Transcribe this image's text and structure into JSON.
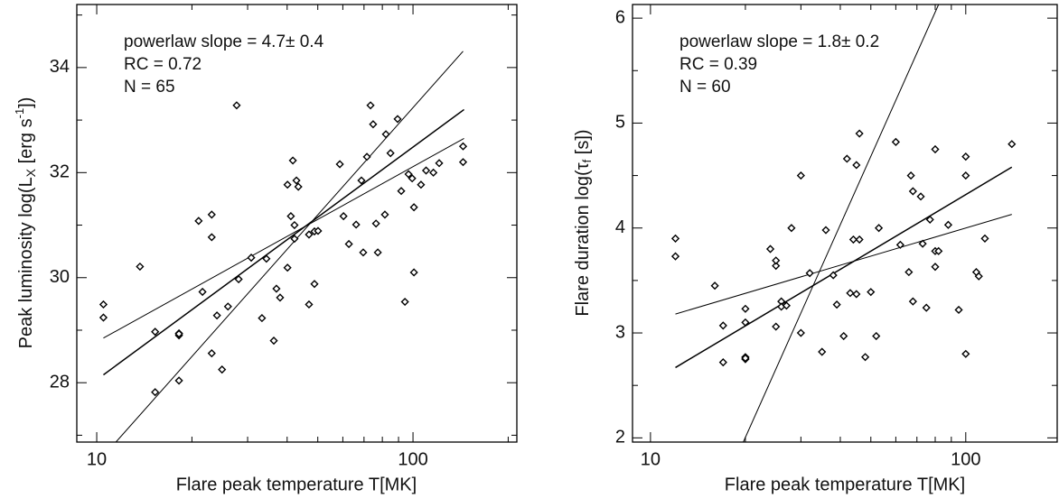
{
  "chart_data": [
    {
      "type": "scatter",
      "xlabel": "Flare peak temperature  T[MK]",
      "ylabel": [
        "Peak luminosity  log(L",
        "X",
        " [erg s",
        "-1",
        "])"
      ],
      "annotations": [
        "powerlaw slope =  4.7± 0.4",
        "RC = 0.72",
        "N = 65"
      ],
      "xlog": true,
      "xlim": [
        8.65,
        213
      ],
      "xticks": [
        10,
        100
      ],
      "xminorticks": [
        20,
        30,
        40,
        50,
        60,
        70,
        80,
        90,
        200
      ],
      "ylim": [
        26.87,
        35.2
      ],
      "yticks": [
        28,
        30,
        32,
        34
      ],
      "yminorticks": [
        27,
        29,
        31,
        33,
        35
      ],
      "color": "#000000",
      "x": [
        10.5,
        10.5,
        13.7,
        15.3,
        15.3,
        18.2,
        18.2,
        18.2,
        18.2,
        21.0,
        21.6,
        23.1,
        23.1,
        23.1,
        24.0,
        24.9,
        26.0,
        27.7,
        28.1,
        30.8,
        33.3,
        34.4,
        36.3,
        37.0,
        38.0,
        40.1,
        40.1,
        41.1,
        41.7,
        42.2,
        42.2,
        42.8,
        43.4,
        46.9,
        46.9,
        48.8,
        48.8,
        50.1,
        58.7,
        60.3,
        62.7,
        66.1,
        68.7,
        69.6,
        71.5,
        73.4,
        74.8,
        76.4,
        77.4,
        81.5,
        82.1,
        84.9,
        89.4,
        91.8,
        94.3,
        96.8,
        99.4,
        100.7,
        100.7,
        106,
        110,
        116,
        121,
        144,
        144
      ],
      "values": [
        29.49,
        29.24,
        30.21,
        28.97,
        27.82,
        28.9,
        28.94,
        28.93,
        28.04,
        31.08,
        29.73,
        31.2,
        30.77,
        28.56,
        29.28,
        28.25,
        29.45,
        33.28,
        29.97,
        30.38,
        29.23,
        30.36,
        28.8,
        29.79,
        29.62,
        30.19,
        31.77,
        31.17,
        32.23,
        30.74,
        31.0,
        31.85,
        31.73,
        29.49,
        30.82,
        30.88,
        29.88,
        30.89,
        32.16,
        31.17,
        30.64,
        31.01,
        31.85,
        30.48,
        32.3,
        33.28,
        32.92,
        31.03,
        30.48,
        31.2,
        32.73,
        32.37,
        33.02,
        31.65,
        29.54,
        31.97,
        31.89,
        30.1,
        31.34,
        31.77,
        32.04,
        32.0,
        32.18,
        32.2,
        32.5
      ],
      "fits": [
        {
          "x": [
            11.5,
            144
          ],
          "values": [
            26.87,
            34.31
          ]
        },
        {
          "x": [
            10.5,
            145
          ],
          "values": [
            28.15,
            33.2
          ]
        },
        {
          "x": [
            10.5,
            145
          ],
          "values": [
            28.85,
            32.65
          ]
        }
      ]
    },
    {
      "type": "scatter",
      "xlabel": "Flare peak temperature  T[MK]",
      "ylabel": [
        "Flare duration  log(τ",
        "f",
        " [s])"
      ],
      "annotations": [
        "powerlaw slope =  1.8± 0.2",
        "RC = 0.39",
        "N = 60"
      ],
      "xlog": true,
      "xlim": [
        8.77,
        195
      ],
      "xticks": [
        10,
        100
      ],
      "xminorticks": [
        20,
        30,
        40,
        50,
        60,
        70,
        80,
        90
      ],
      "ylim": [
        1.96,
        6.13
      ],
      "yticks": [
        2,
        3,
        4,
        5,
        6
      ],
      "yminorticks": [
        2.5,
        3.5,
        4.5,
        5.5
      ],
      "color": "#000000",
      "x": [
        12,
        12,
        16,
        17,
        17,
        20,
        20,
        20,
        20,
        24,
        25,
        25,
        25,
        26,
        26,
        27,
        28,
        30,
        32,
        30,
        35,
        36,
        38,
        39,
        41,
        42,
        43,
        44,
        45,
        46,
        45,
        46,
        48,
        50,
        52,
        53,
        60,
        62,
        66,
        67,
        68,
        68,
        72,
        73,
        75,
        77,
        80,
        80,
        82,
        80,
        88,
        95,
        100,
        100,
        100,
        108,
        110,
        115,
        140,
        20
      ],
      "values": [
        3.9,
        3.73,
        3.45,
        3.07,
        2.72,
        3.1,
        3.23,
        2.75,
        2.77,
        3.8,
        3.64,
        3.69,
        3.06,
        3.3,
        3.25,
        3.26,
        4.0,
        4.5,
        3.57,
        3.0,
        2.82,
        3.98,
        3.55,
        3.27,
        2.97,
        4.66,
        3.38,
        3.89,
        4.6,
        4.9,
        3.37,
        3.89,
        2.77,
        3.39,
        2.97,
        4.0,
        4.82,
        3.84,
        3.58,
        4.5,
        3.3,
        4.35,
        4.3,
        3.85,
        3.24,
        4.08,
        4.75,
        3.78,
        3.78,
        3.63,
        4.03,
        3.22,
        4.68,
        4.5,
        2.8,
        3.58,
        3.54,
        3.9,
        4.8,
        2.76
      ],
      "fits": [
        {
          "x": [
            19.7,
            82
          ],
          "values": [
            1.96,
            6.13
          ]
        },
        {
          "x": [
            12,
            140
          ],
          "values": [
            2.67,
            4.58
          ]
        },
        {
          "x": [
            12,
            140
          ],
          "values": [
            3.18,
            4.13
          ]
        }
      ]
    }
  ]
}
